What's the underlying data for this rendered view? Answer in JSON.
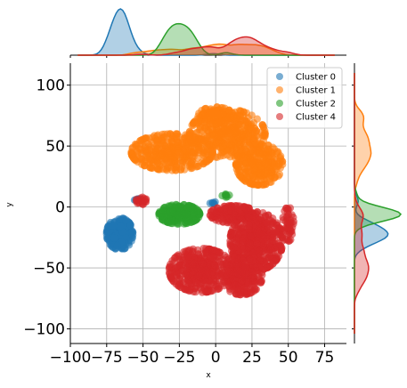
{
  "chart_data": {
    "type": "scatter",
    "title": "",
    "xlabel": "x",
    "ylabel": "y",
    "xlim": [
      -100,
      90
    ],
    "ylim": [
      -112,
      118
    ],
    "x_ticks": [
      -100,
      -75,
      -50,
      -25,
      0,
      25,
      50,
      75
    ],
    "x_tick_labels": [
      "−100",
      "−75",
      "−50",
      "−25",
      "0",
      "25",
      "50",
      "75"
    ],
    "y_ticks": [
      -100,
      -50,
      0,
      50,
      100
    ],
    "y_tick_labels": [
      "−100",
      "−50",
      "0",
      "50",
      "100"
    ],
    "grid": true,
    "legend_position": "top-right",
    "marginals": "kde+histogram on top (x) and right (y)",
    "series": [
      {
        "name": "Cluster 0",
        "color": "#1f77b4",
        "blobs": [
          {
            "cx": -66,
            "cy": -22,
            "rx": 9,
            "ry": 13,
            "n": 260
          },
          {
            "cx": -53,
            "cy": 6,
            "rx": 3,
            "ry": 2,
            "n": 10
          },
          {
            "cx": -2,
            "cy": 3,
            "rx": 2,
            "ry": 2,
            "n": 6
          }
        ]
      },
      {
        "name": "Cluster 1",
        "color": "#ff7f0e",
        "blobs": [
          {
            "cx": -30,
            "cy": 45,
            "rx": 28,
            "ry": 15,
            "n": 380
          },
          {
            "cx": 8,
            "cy": 60,
            "rx": 26,
            "ry": 20,
            "n": 420
          },
          {
            "cx": 30,
            "cy": 35,
            "rx": 16,
            "ry": 17,
            "n": 280
          },
          {
            "cx": 0,
            "cy": 75,
            "rx": 12,
            "ry": 7,
            "n": 110
          }
        ]
      },
      {
        "name": "Cluster 2",
        "color": "#2ca02c",
        "blobs": [
          {
            "cx": -25,
            "cy": -6,
            "rx": 14,
            "ry": 8,
            "n": 230
          },
          {
            "cx": 8,
            "cy": 10,
            "rx": 4,
            "ry": 2,
            "n": 8
          }
        ]
      },
      {
        "name": "Cluster 4",
        "color": "#d62728",
        "blobs": [
          {
            "cx": 28,
            "cy": -28,
            "rx": 18,
            "ry": 24,
            "n": 520
          },
          {
            "cx": -10,
            "cy": -52,
            "rx": 22,
            "ry": 18,
            "n": 420
          },
          {
            "cx": 18,
            "cy": -57,
            "rx": 14,
            "ry": 15,
            "n": 260
          },
          {
            "cx": 12,
            "cy": -6,
            "rx": 16,
            "ry": 7,
            "n": 170
          },
          {
            "cx": -50,
            "cy": 5,
            "rx": 5,
            "ry": 3,
            "n": 18
          },
          {
            "cx": 50,
            "cy": -14,
            "rx": 4,
            "ry": 14,
            "n": 45
          }
        ]
      }
    ]
  }
}
